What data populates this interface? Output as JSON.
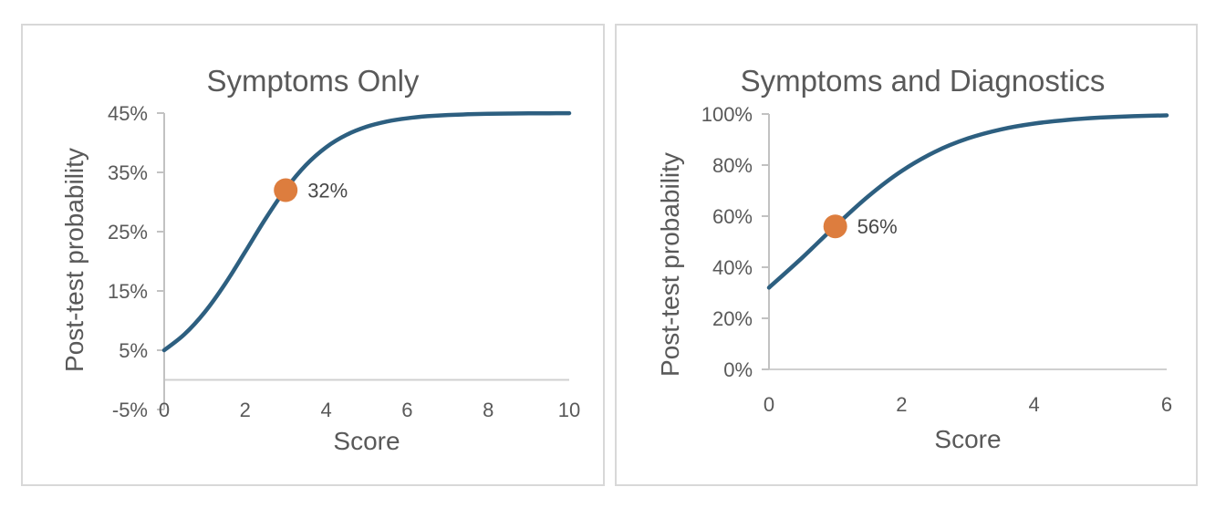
{
  "figure": {
    "description": "Two post-test probability sigmoid curves",
    "background": "#ffffff",
    "panel_border_color": "#D8D8D8"
  },
  "colors": {
    "curve": "#2D5F80",
    "marker": "#DD7D3E",
    "axis": "#C2C2C2",
    "zero_line": "#D0D0D0",
    "text": "#595959",
    "data_label_text": "#474747"
  },
  "chart_data": [
    {
      "type": "line",
      "title": "Symptoms Only",
      "xlabel": "Score",
      "ylabel": "Post-test probability",
      "xlim": [
        0,
        10
      ],
      "ylim": [
        -5,
        45
      ],
      "x_tick_values": [
        0,
        2,
        4,
        6,
        8,
        10
      ],
      "x_tick_labels": [
        "0",
        "2",
        "4",
        "6",
        "8",
        "10"
      ],
      "y_tick_values": [
        45,
        35,
        25,
        15,
        5,
        -5
      ],
      "y_tick_labels": [
        "45%",
        "35%",
        "25%",
        "15%",
        "5%",
        "-5%"
      ],
      "grid": false,
      "legend": "none",
      "series": [
        {
          "name": "post-test probability",
          "x": [
            0,
            0.5,
            1,
            1.5,
            2,
            2.5,
            3,
            3.5,
            4,
            4.5,
            5,
            5.5,
            6,
            6.5,
            7,
            7.5,
            8,
            8.5,
            9,
            9.5,
            10
          ],
          "y": [
            5.0,
            7.69,
            11.41,
            16.15,
            21.6,
            27.16,
            32.18,
            36.24,
            39.25,
            41.33,
            42.7,
            43.58,
            44.13,
            44.47,
            44.67,
            44.8,
            44.88,
            44.93,
            44.96,
            44.97,
            44.98
          ]
        }
      ],
      "highlight_point": {
        "x": 3,
        "y": 32,
        "label": "32%"
      }
    },
    {
      "type": "line",
      "title": "Symptoms and Diagnostics",
      "xlabel": "Score",
      "ylabel": "Post-test probability",
      "xlim": [
        0,
        6
      ],
      "ylim": [
        0,
        100
      ],
      "x_tick_values": [
        0,
        2,
        4,
        6
      ],
      "x_tick_labels": [
        "0",
        "2",
        "4",
        "6"
      ],
      "y_tick_values": [
        100,
        80,
        60,
        40,
        20,
        0
      ],
      "y_tick_labels": [
        "100%",
        "80%",
        "60%",
        "40%",
        "20%",
        "0%"
      ],
      "grid": false,
      "legend": "none",
      "series": [
        {
          "name": "post-test probability",
          "x": [
            0,
            0.5,
            1,
            1.5,
            2,
            2.5,
            3,
            3.5,
            4,
            4.5,
            5,
            5.5,
            6
          ],
          "y": [
            32.0,
            43.69,
            56.12,
            67.83,
            77.66,
            85.14,
            90.43,
            93.97,
            96.25,
            97.69,
            98.59,
            99.14,
            99.48
          ]
        }
      ],
      "highlight_point": {
        "x": 1,
        "y": 56,
        "label": "56%"
      }
    }
  ]
}
